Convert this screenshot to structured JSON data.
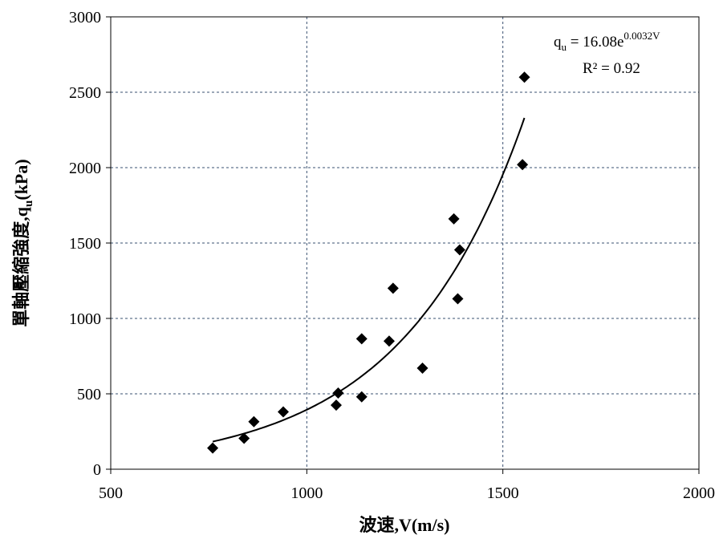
{
  "chart_data": {
    "type": "scatter",
    "xlabel": "波速,V(m/s)",
    "ylabel_main": "單軸壓縮強度,q",
    "ylabel_sub": "u",
    "ylabel_tail": "(kPa)",
    "xlim": [
      500,
      2000
    ],
    "ylim": [
      0,
      3000
    ],
    "x_ticks": [
      500,
      1000,
      1500,
      2000
    ],
    "y_ticks": [
      0,
      500,
      1000,
      1500,
      2000,
      2500,
      3000
    ],
    "grid": true,
    "series": [
      {
        "marker": "diamond",
        "color": "#000000",
        "points": [
          [
            760,
            140
          ],
          [
            840,
            205
          ],
          [
            865,
            315
          ],
          [
            940,
            380
          ],
          [
            1075,
            425
          ],
          [
            1080,
            505
          ],
          [
            1140,
            480
          ],
          [
            1140,
            865
          ],
          [
            1210,
            850
          ],
          [
            1220,
            1200
          ],
          [
            1295,
            670
          ],
          [
            1375,
            1660
          ],
          [
            1385,
            1130
          ],
          [
            1390,
            1455
          ],
          [
            1550,
            2020
          ],
          [
            1555,
            2600
          ]
        ]
      }
    ],
    "trendline": {
      "type": "exponential",
      "a": 16.08,
      "b": 0.0032,
      "x_range": [
        760,
        1555
      ],
      "color": "#000000"
    },
    "equation": {
      "lhs_main": "q",
      "lhs_sub": "u",
      "rhs_main": " = 16.08e",
      "rhs_sup": "0.0032V",
      "r2": "R² = 0.92"
    }
  }
}
